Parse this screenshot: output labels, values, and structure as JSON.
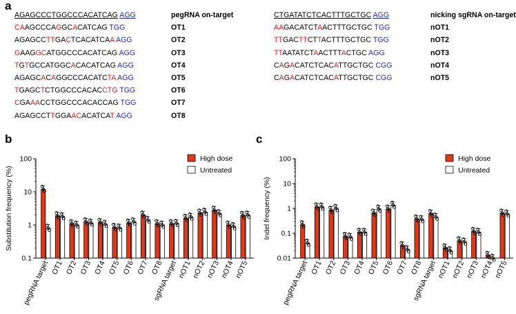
{
  "panels": {
    "a": "a",
    "b": "b",
    "c": "c"
  },
  "colors": {
    "mismatch": "#e31a1c",
    "pam": "#1f1fd6",
    "high_dose": "#e0391a",
    "untreated": "#ffffff"
  },
  "seq_left": {
    "header": {
      "seq": "AGAGCCCTGGCCCACATCAG",
      "pam": "AGG",
      "label": "pegRNA on-target"
    },
    "rows": [
      {
        "seq": "CAAGCCCAGGCACATCAG",
        "mm": [
          0,
          1,
          8,
          11
        ],
        "pam": "TGG",
        "label": "OT1"
      },
      {
        "seq": "AGAGCCTTGACTCACATCAA",
        "mm": [
          6,
          7,
          10,
          19
        ],
        "pam": "AGG",
        "label": "OT2"
      },
      {
        "seq": "GAAGGCATGGCCCACATCAG",
        "mm": [
          0,
          4,
          5
        ],
        "pam": "AGG",
        "label": "OT3"
      },
      {
        "seq": "TGTGCCATGGCACACATCAG",
        "mm": [
          0,
          2,
          11
        ],
        "pam": "AGG",
        "label": "OT4"
      },
      {
        "seq": "AGAGCACAGGCCCACATCTA",
        "mm": [
          5,
          7,
          18,
          19
        ],
        "pam": "AGG",
        "label": "OT5"
      },
      {
        "seq": "TGAGCTCTGGCCCACACCTG",
        "mm": [
          0,
          5,
          17,
          18,
          19
        ],
        "pam": "TGG",
        "label": "OT6"
      },
      {
        "seq": "CGAAACCTGGCCCACACCAG",
        "mm": [
          0,
          3,
          4
        ],
        "pam": "TGG",
        "label": "OT7"
      },
      {
        "seq": "AGAGCCTTGGAACACATCAT",
        "mm": [
          7,
          11,
          12,
          19
        ],
        "pam": "AGG",
        "label": "OT8"
      }
    ]
  },
  "seq_right": {
    "header": {
      "seq": "CTGATATCTCACTTTGCTGC",
      "pam": "AGG",
      "label": "nicking sgRNA on-target"
    },
    "rows": [
      {
        "seq": "AAGACATCTAACTTTGCTGC",
        "mm": [
          0,
          1,
          9
        ],
        "pam": "TGG",
        "label": "nOT1"
      },
      {
        "seq": "TTGACTTCTTACTTTGCTGC",
        "mm": [
          0,
          1,
          5,
          6,
          9
        ],
        "pam": "TGG",
        "label": "nOT2"
      },
      {
        "seq": "TTAATATCTAACTTTACTGC",
        "mm": [
          0,
          1,
          9,
          15
        ],
        "pam": "AGG",
        "label": "nOT3"
      },
      {
        "seq": "CAGACATCTCACATTGCTGC",
        "mm": [
          1,
          3,
          12
        ],
        "pam": "CGG",
        "label": "nOT4"
      },
      {
        "seq": "CAGACATCTCACATTGCTGC",
        "mm": [
          1,
          3,
          12
        ],
        "pam": "CGG",
        "label": "nOT5"
      }
    ]
  },
  "chart_data": [
    {
      "type": "bar",
      "panel": "b",
      "ylabel": "Substitution frequency (%)",
      "yscale": "log",
      "ylim": [
        0.1,
        100
      ],
      "yticks": [
        "0.1",
        "1",
        "10",
        "100"
      ],
      "categories": [
        "pegRNA target",
        "OT1",
        "OT2",
        "OT3",
        "OT4",
        "OT5",
        "OT6",
        "OT7",
        "OT8",
        "sgRNA target",
        "nOT1",
        "nOT2",
        "nOT3",
        "nOT4",
        "nOT5"
      ],
      "series": [
        {
          "name": "High dose",
          "values": [
            12,
            1.9,
            1.1,
            1.25,
            1.2,
            0.85,
            1.15,
            2.0,
            1.1,
            1.1,
            1.6,
            2.3,
            2.8,
            1.0,
            1.95
          ]
        },
        {
          "name": "Untreated",
          "values": [
            0.8,
            1.8,
            1.0,
            1.15,
            1.05,
            0.82,
            1.25,
            1.4,
            1.0,
            1.12,
            1.75,
            2.45,
            2.2,
            0.9,
            2.0
          ]
        }
      ],
      "legend": [
        "High dose",
        "Untreated"
      ]
    },
    {
      "type": "bar",
      "panel": "c",
      "ylabel": "Indel frequency (%)",
      "yscale": "log",
      "ylim": [
        0.01,
        100
      ],
      "yticks": [
        "0.01",
        "0.1",
        "1",
        "10",
        "100"
      ],
      "categories": [
        "pegRNA target",
        "OT1",
        "OT2",
        "OT3",
        "OT4",
        "OT5",
        "OT6",
        "OT7",
        "OT8",
        "sgRNA target",
        "nOT1",
        "nOT2",
        "nOT3",
        "nOT4",
        "nOT5"
      ],
      "series": [
        {
          "name": "High dose",
          "values": [
            0.22,
            1.15,
            0.85,
            0.075,
            0.11,
            0.65,
            0.95,
            0.032,
            0.38,
            0.62,
            0.026,
            0.05,
            0.12,
            0.013,
            0.65
          ]
        },
        {
          "name": "Untreated",
          "values": [
            0.04,
            1.15,
            1.0,
            0.07,
            0.11,
            0.95,
            1.35,
            0.022,
            0.36,
            0.45,
            0.02,
            0.045,
            0.11,
            0.01,
            0.6
          ]
        }
      ],
      "legend": [
        "High dose",
        "Untreated"
      ]
    }
  ]
}
